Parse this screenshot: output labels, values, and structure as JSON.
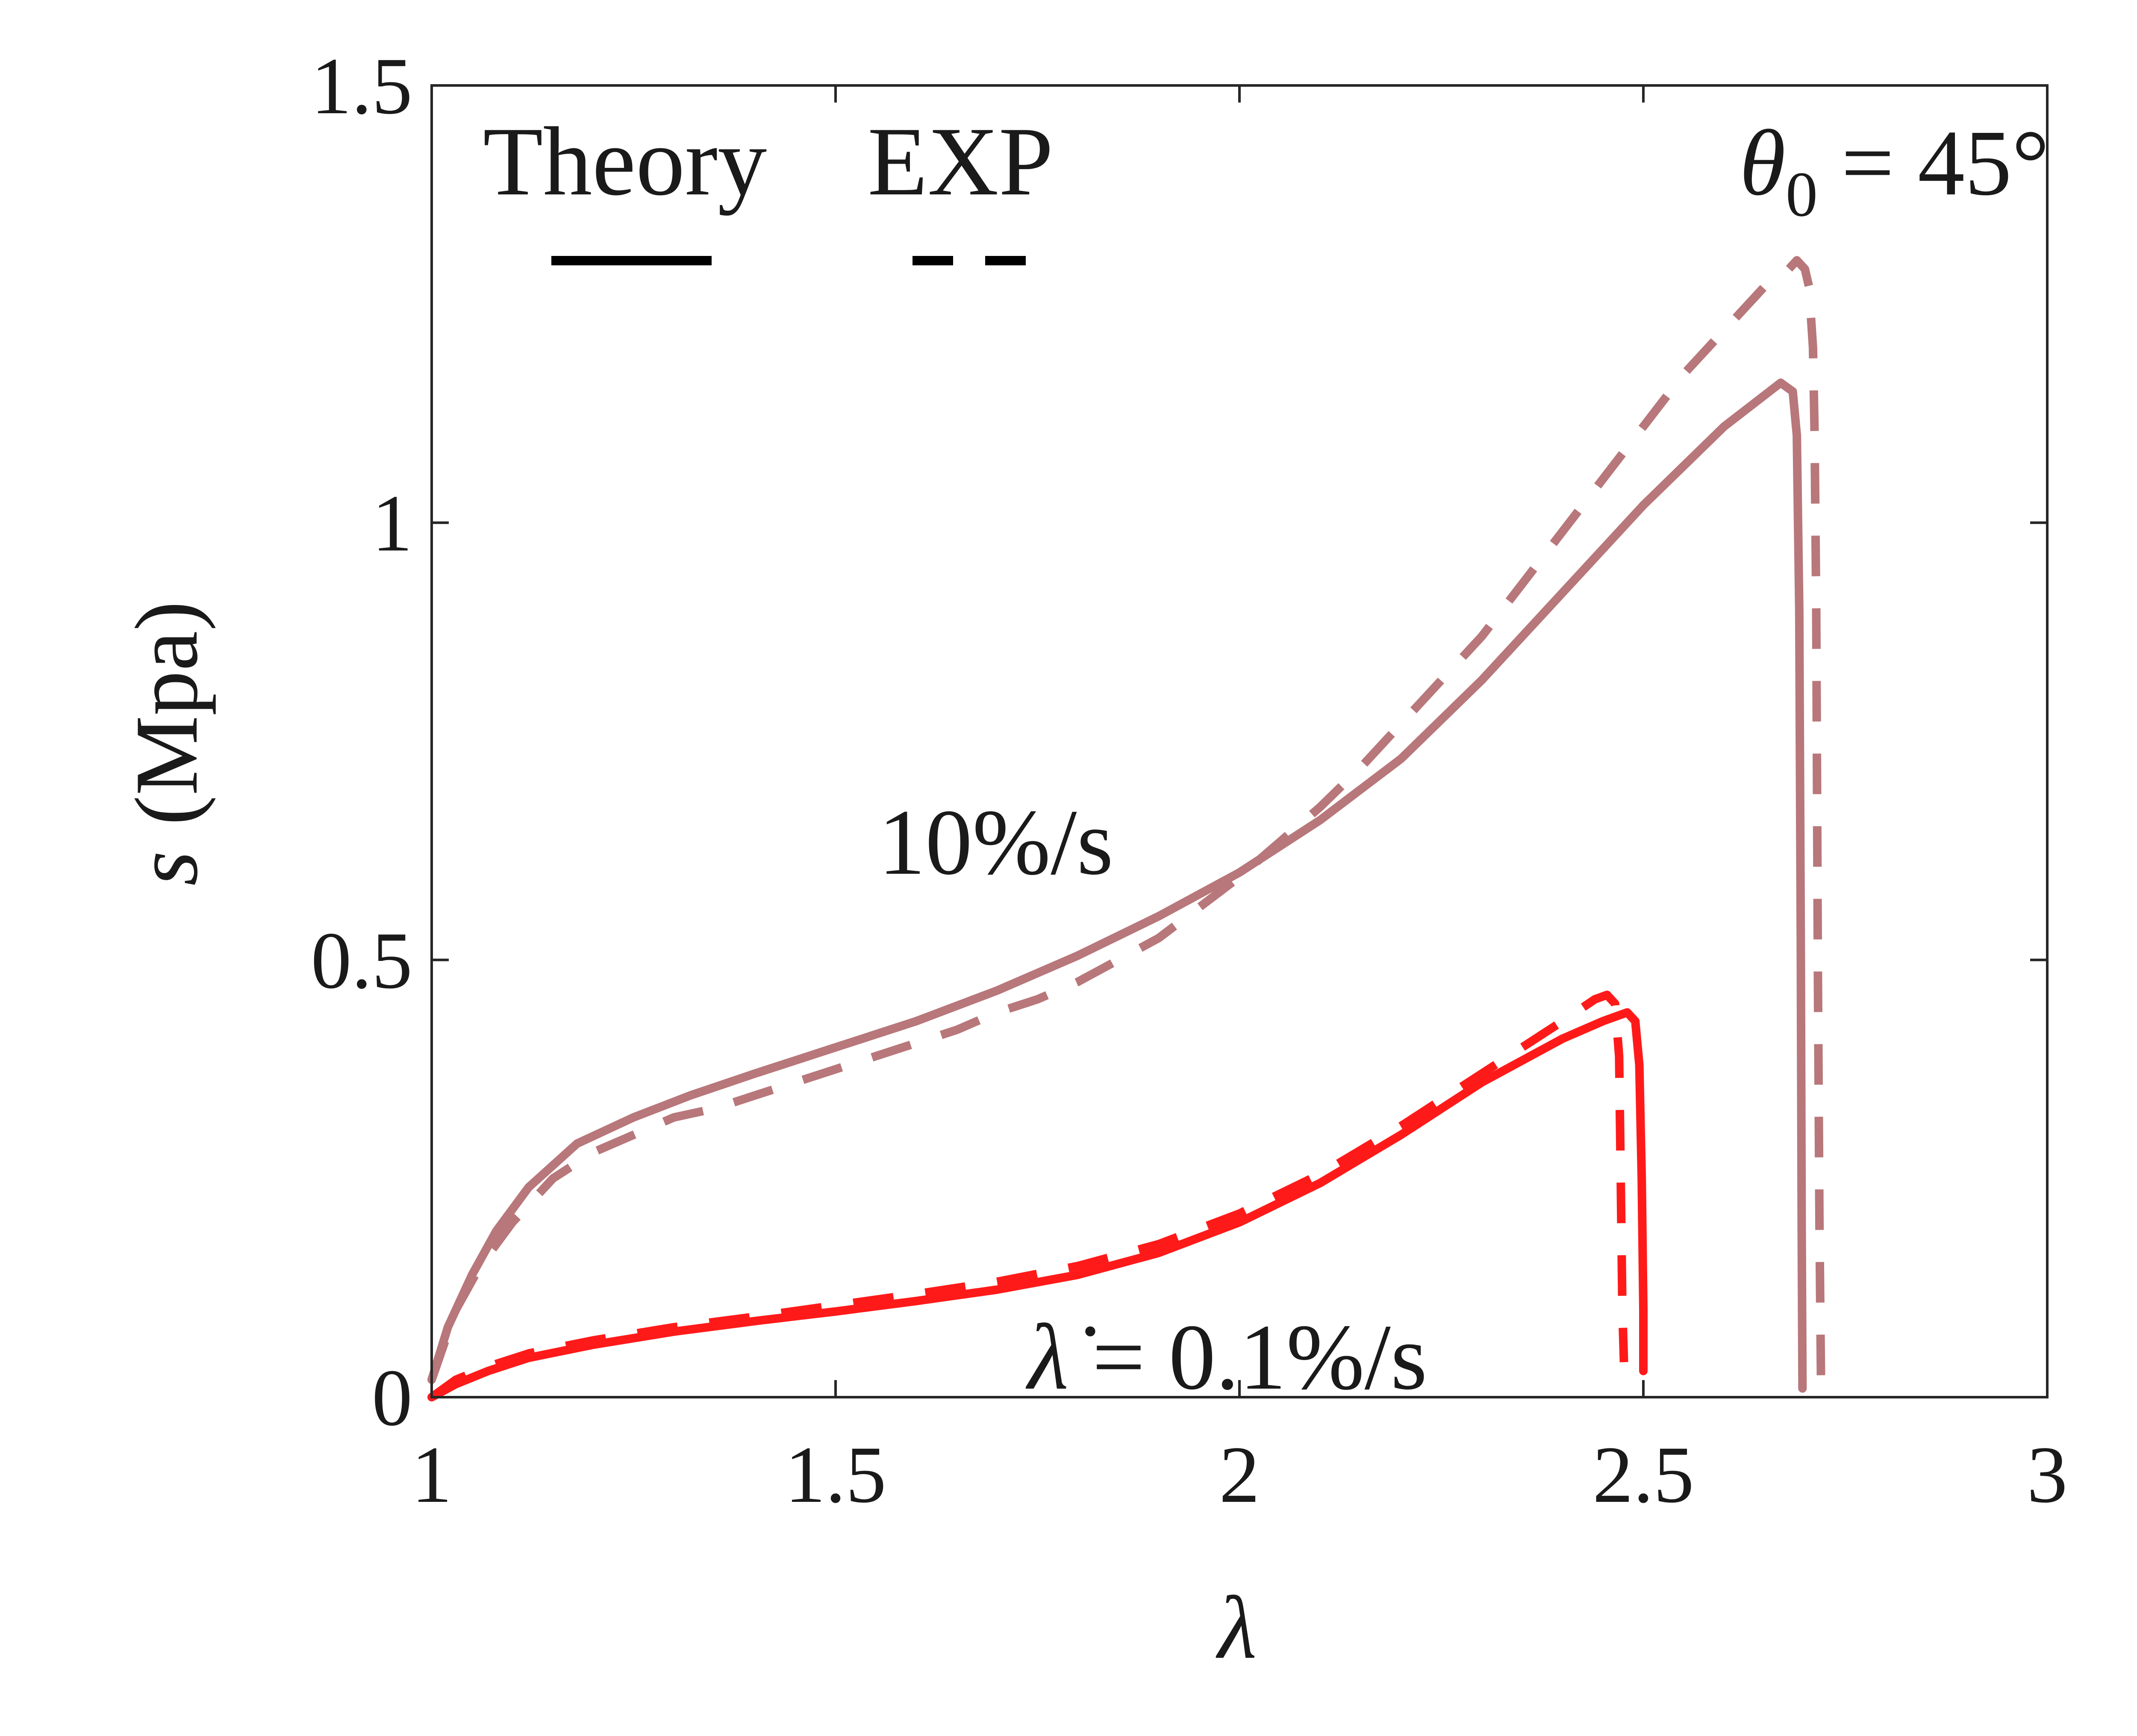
{
  "chart_data": {
    "type": "line",
    "title": "",
    "xlabel": "λ",
    "ylabel_var": "s",
    "ylabel_unit": "(Mpa)",
    "xlim": [
      1,
      3
    ],
    "ylim": [
      0,
      1.5
    ],
    "xticks": [
      1,
      1.5,
      2,
      2.5,
      3
    ],
    "xtick_labels": [
      "1",
      "1.5",
      "2",
      "2.5",
      "3"
    ],
    "yticks": [
      0,
      0.5,
      1,
      1.5
    ],
    "ytick_labels": [
      "0",
      "0.5",
      "1",
      "1.5"
    ],
    "legend": {
      "placement": "top-left",
      "theory_label": "Theory",
      "exp_label": "EXP"
    },
    "annotations": {
      "theta_var": "θ",
      "theta_sub": "0",
      "theta_value": " = 45°",
      "rate_fast": "10%/s",
      "rate_slow_var": "λ̇",
      "rate_slow_value": " = 0.1%/s"
    },
    "colors": {
      "fast": "#b8777a",
      "slow": "#ff1a1a",
      "axis": "#262626"
    },
    "series": [
      {
        "name": "10%/s Theory",
        "style": "solid",
        "color_key": "fast",
        "x": [
          1.0,
          1.02,
          1.05,
          1.08,
          1.12,
          1.18,
          1.25,
          1.32,
          1.4,
          1.5,
          1.6,
          1.7,
          1.8,
          1.9,
          2.0,
          2.1,
          2.2,
          2.3,
          2.4,
          2.5,
          2.6,
          2.67,
          2.685,
          2.69,
          2.693,
          2.695,
          2.696,
          2.697
        ],
        "y": [
          0.02,
          0.08,
          0.14,
          0.19,
          0.24,
          0.29,
          0.32,
          0.345,
          0.37,
          0.4,
          0.43,
          0.465,
          0.505,
          0.55,
          0.6,
          0.66,
          0.73,
          0.82,
          0.92,
          1.02,
          1.11,
          1.16,
          1.15,
          1.1,
          0.9,
          0.5,
          0.2,
          0.01
        ]
      },
      {
        "name": "10%/s EXP",
        "style": "dashed",
        "color_key": "fast",
        "x": [
          1.0,
          1.03,
          1.06,
          1.1,
          1.15,
          1.2,
          1.25,
          1.3,
          1.35,
          1.4,
          1.45,
          1.5,
          1.55,
          1.6,
          1.65,
          1.7,
          1.75,
          1.8,
          1.85,
          1.9,
          1.95,
          2.0,
          2.05,
          2.1,
          2.15,
          2.2,
          2.25,
          2.3,
          2.35,
          2.4,
          2.45,
          2.5,
          2.55,
          2.6,
          2.65,
          2.68,
          2.69,
          2.7,
          2.705,
          2.71,
          2.712,
          2.714,
          2.716,
          2.718,
          2.72
        ],
        "y": [
          0.02,
          0.1,
          0.15,
          0.2,
          0.25,
          0.28,
          0.3,
          0.32,
          0.33,
          0.345,
          0.36,
          0.375,
          0.39,
          0.405,
          0.42,
          0.44,
          0.455,
          0.475,
          0.5,
          0.525,
          0.56,
          0.595,
          0.635,
          0.675,
          0.72,
          0.77,
          0.82,
          0.87,
          0.93,
          0.99,
          1.05,
          1.11,
          1.17,
          1.22,
          1.27,
          1.29,
          1.3,
          1.29,
          1.27,
          1.2,
          1.1,
          0.9,
          0.5,
          0.2,
          0.01
        ]
      },
      {
        "name": "0.1%/s Theory",
        "style": "solid",
        "color_key": "slow",
        "x": [
          1.0,
          1.03,
          1.07,
          1.12,
          1.2,
          1.3,
          1.4,
          1.5,
          1.6,
          1.7,
          1.8,
          1.9,
          2.0,
          2.1,
          2.2,
          2.3,
          2.4,
          2.45,
          2.48,
          2.49,
          2.495,
          2.498,
          2.5,
          2.5
        ],
        "y": [
          0.0,
          0.015,
          0.03,
          0.045,
          0.06,
          0.075,
          0.087,
          0.098,
          0.11,
          0.123,
          0.14,
          0.165,
          0.2,
          0.245,
          0.3,
          0.36,
          0.41,
          0.43,
          0.44,
          0.43,
          0.38,
          0.25,
          0.1,
          0.03
        ]
      },
      {
        "name": "0.1%/s EXP",
        "style": "dashed",
        "color_key": "slow",
        "x": [
          1.0,
          1.03,
          1.07,
          1.12,
          1.2,
          1.3,
          1.4,
          1.5,
          1.6,
          1.7,
          1.8,
          1.9,
          2.0,
          2.1,
          2.2,
          2.3,
          2.4,
          2.44,
          2.455,
          2.465,
          2.47,
          2.472,
          2.474,
          2.476
        ],
        "y": [
          0.0,
          0.02,
          0.035,
          0.05,
          0.065,
          0.08,
          0.092,
          0.105,
          0.118,
          0.132,
          0.15,
          0.175,
          0.21,
          0.255,
          0.31,
          0.37,
          0.43,
          0.455,
          0.46,
          0.45,
          0.39,
          0.25,
          0.1,
          0.04
        ]
      }
    ]
  }
}
